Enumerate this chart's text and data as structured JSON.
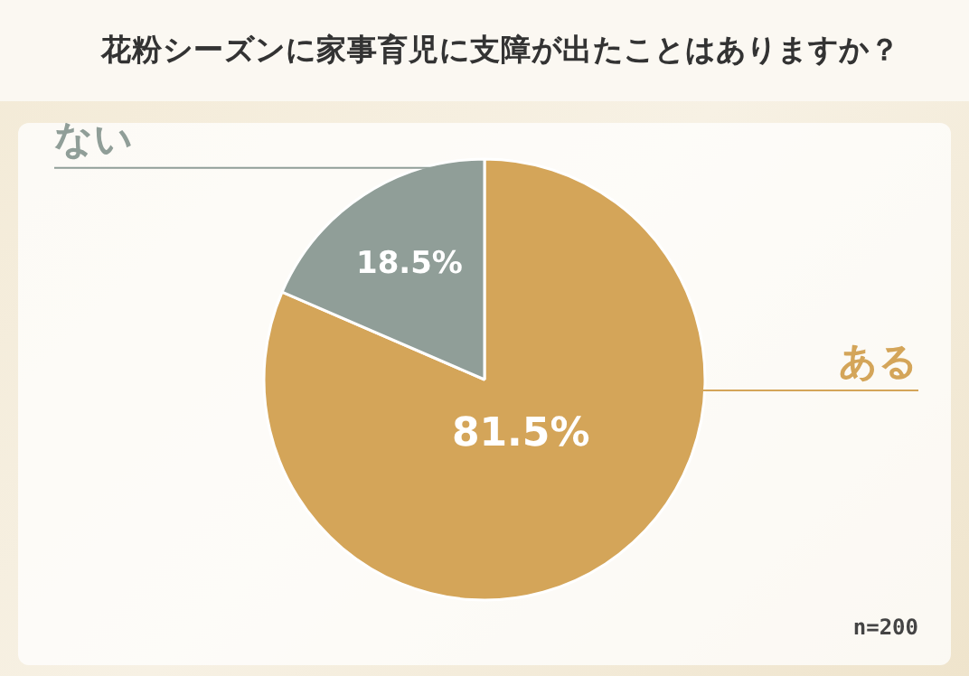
{
  "chart_data": {
    "type": "pie",
    "title": "花粉シーズンに家事育児に支障が出たことはありますか？",
    "categories": [
      "ある",
      "ない"
    ],
    "values": [
      81.5,
      18.5
    ],
    "colors": [
      "#d4a559",
      "#909e98"
    ],
    "value_labels": [
      "81.5%",
      "18.5%"
    ],
    "annotations": [
      "n=200"
    ],
    "legend": false
  }
}
